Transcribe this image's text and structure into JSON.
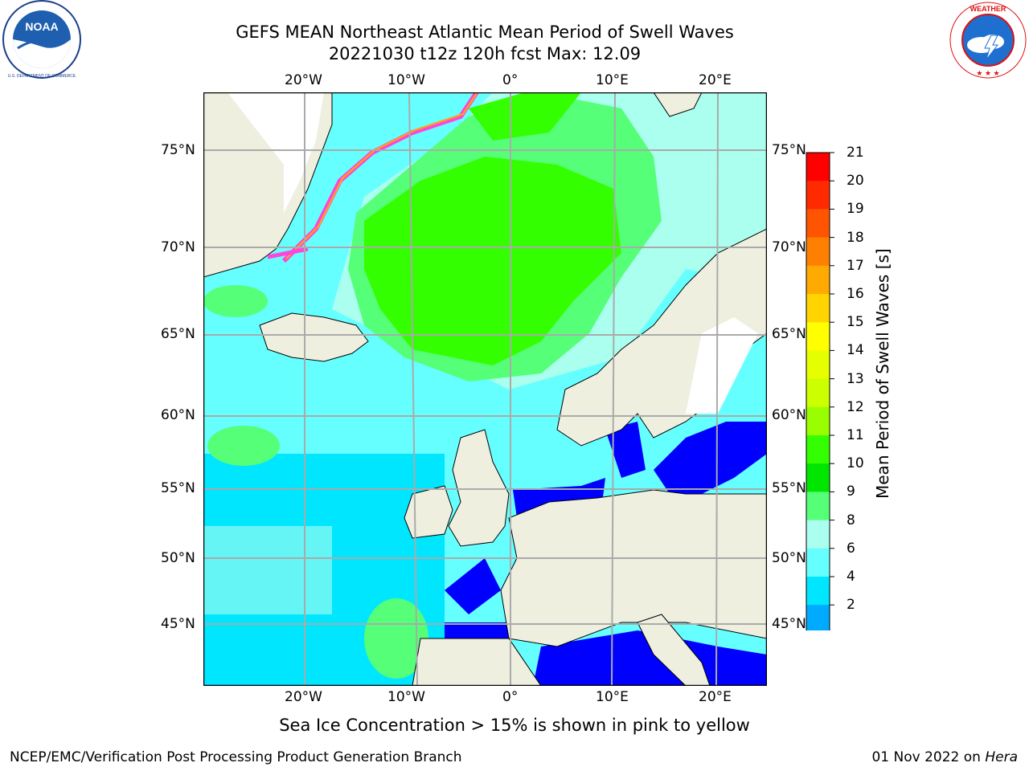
{
  "header": {
    "title_line1": "GEFS MEAN Northeast Atlantic Mean Period of Swell Waves",
    "title_line2": "20221030 t12z 120h fcst   Max: 12.09"
  },
  "logos": {
    "left": "NOAA",
    "left_ring_text": "NATIONAL OCEANIC AND ATMOSPHERIC ADMINISTRATION · U.S. DEPARTMENT OF COMMERCE",
    "right_ring_text": "NATIONAL WEATHER SERVICE"
  },
  "map": {
    "lon_labels": [
      "20°W",
      "10°W",
      "0°",
      "10°E",
      "20°E"
    ],
    "lat_labels": [
      "75°N",
      "70°N",
      "65°N",
      "60°N",
      "55°N",
      "50°N",
      "45°N"
    ],
    "caption": "Sea Ice Concentration > 15% is shown in pink to yellow"
  },
  "colorbar": {
    "label": "Mean Period of Swell Waves [s]",
    "ticks": [
      "21",
      "20",
      "19",
      "18",
      "17",
      "16",
      "15",
      "14",
      "13",
      "12",
      "11",
      "10",
      "9",
      "8",
      "6",
      "4",
      "2"
    ],
    "colors": [
      "#ff0000",
      "#ff2a00",
      "#ff5500",
      "#ff8000",
      "#ffaa00",
      "#ffd400",
      "#ffff00",
      "#e6ff00",
      "#ccff00",
      "#99ff00",
      "#33ff00",
      "#00e600",
      "#55ff77",
      "#aaffee",
      "#66ffff",
      "#00e6ff",
      "#00aaff",
      "#0066ff",
      "#0000ff"
    ]
  },
  "footer": {
    "left": "NCEP/EMC/Verification Post Processing Product Generation Branch",
    "right_date": "01 Nov 2022 on ",
    "right_host": "Hera"
  }
}
